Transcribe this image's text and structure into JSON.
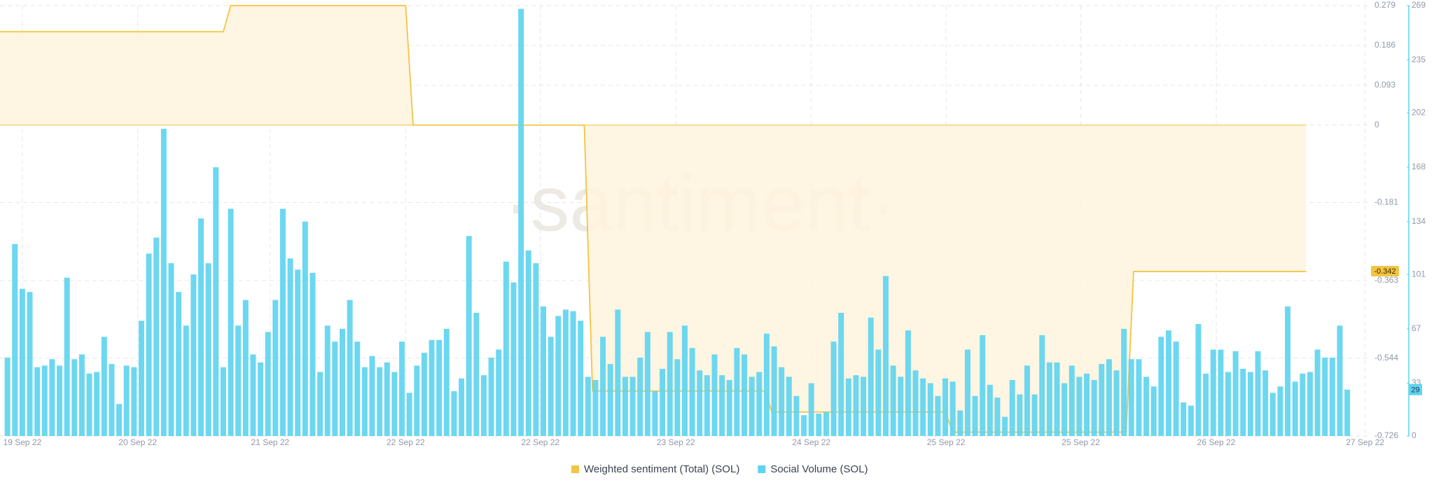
{
  "chart_data": {
    "type": "combo",
    "watermark": "·santiment·",
    "xlim": [
      -1,
      183
    ],
    "xticks": [
      {
        "value": 2,
        "label": "19 Sep 22"
      },
      {
        "value": 17.5,
        "label": "20 Sep 22"
      },
      {
        "value": 35.3,
        "label": "21 Sep 22"
      },
      {
        "value": 53.5,
        "label": "22 Sep 22"
      },
      {
        "value": 71.6,
        "label": "22 Sep 22"
      },
      {
        "value": 89.8,
        "label": "23 Sep 22"
      },
      {
        "value": 108,
        "label": "24 Sep 22"
      },
      {
        "value": 126.1,
        "label": "25 Sep 22"
      },
      {
        "value": 144.2,
        "label": "25 Sep 22"
      },
      {
        "value": 162.4,
        "label": "26 Sep 22"
      },
      {
        "value": 182.4,
        "label": "27 Sep 22"
      }
    ],
    "ylim": [
      -0.726,
      0.279
    ],
    "yticks": [
      -0.726,
      -0.544,
      -0.363,
      -0.181,
      0,
      0.093,
      0.186,
      0.279
    ],
    "y2lim": [
      0,
      269
    ],
    "y2ticks": [
      0,
      33,
      67,
      101,
      134,
      168,
      202,
      235,
      269
    ],
    "grid": true,
    "legend": "bottom",
    "series": [
      {
        "name": "Weighted sentiment (Total) (SOL)",
        "color": "#f3c443",
        "fill": "#fef3dd",
        "kind": "step-area",
        "x": [
          -1,
          29,
          30,
          53.5,
          54.5,
          77.5,
          78.6,
          101.7,
          102.7,
          126,
          127,
          150.3,
          151.3,
          174.5
        ],
        "values": [
          0.218,
          0.218,
          0.279,
          0.279,
          0,
          0,
          -0.621,
          -0.621,
          -0.67,
          -0.67,
          -0.717,
          -0.717,
          -0.342,
          -0.342
        ],
        "current_label": "-0.342"
      },
      {
        "name": "Social Volume (SOL)",
        "color": "#5fd4ef",
        "kind": "bar",
        "axis": "y2",
        "values": [
          49,
          120,
          92,
          90,
          43,
          44,
          48,
          44,
          99,
          48,
          51,
          39,
          40,
          62,
          45,
          20,
          44,
          43,
          72,
          114,
          124,
          192,
          108,
          90,
          69,
          101,
          136,
          108,
          168,
          43,
          142,
          69,
          85,
          51,
          46,
          65,
          85,
          142,
          111,
          104,
          134,
          102,
          40,
          69,
          59,
          67,
          85,
          59,
          43,
          50,
          43,
          46,
          40,
          59,
          27,
          44,
          52,
          60,
          60,
          67,
          28,
          36,
          125,
          77,
          38,
          49,
          54,
          109,
          96,
          267,
          116,
          108,
          81,
          62,
          75,
          79,
          78,
          72,
          37,
          35,
          62,
          45,
          79,
          37,
          37,
          49,
          65,
          28,
          42,
          65,
          48,
          69,
          55,
          41,
          38,
          51,
          38,
          35,
          55,
          51,
          37,
          40,
          64,
          56,
          43,
          37,
          25,
          13,
          33,
          14,
          15,
          59,
          77,
          36,
          38,
          37,
          74,
          54,
          100,
          44,
          37,
          66,
          41,
          36,
          33,
          25,
          36,
          34,
          16,
          54,
          25,
          63,
          32,
          24,
          12,
          35,
          26,
          44,
          26,
          63,
          46,
          46,
          33,
          44,
          37,
          39,
          35,
          45,
          48,
          41,
          67,
          48,
          48,
          37,
          31,
          62,
          66,
          59,
          21,
          19,
          70,
          39,
          54,
          54,
          40,
          53,
          42,
          40,
          53,
          41,
          27,
          31,
          81,
          34,
          39,
          40,
          54,
          49,
          49,
          69,
          29
        ],
        "current_label": "29"
      }
    ]
  }
}
